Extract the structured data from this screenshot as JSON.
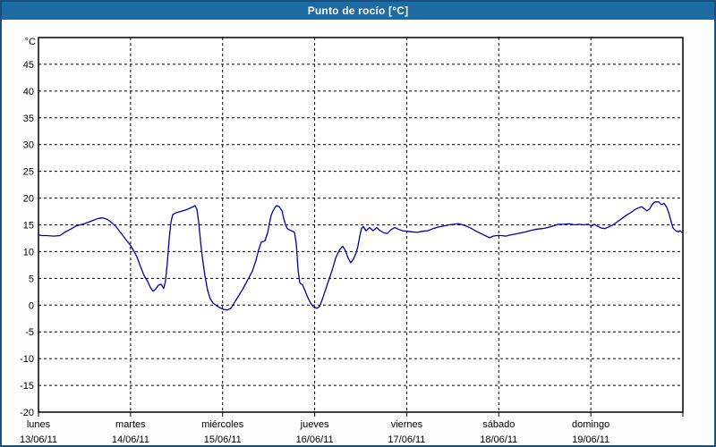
{
  "window_title": "Punto de rocío [°C]",
  "colors": {
    "title_bar": "#1d6ba3",
    "title_text": "#ffffff",
    "window_border": "#17507d",
    "page_bg": "#fdfdfc",
    "plot_bg": "#ffffff",
    "grid": "#000000",
    "line": "#0000aa"
  },
  "chart_data": {
    "type": "line",
    "title": "Punto de rocío [°C]",
    "ylabel": "°C",
    "xlabel": "",
    "ylim": [
      -20,
      50
    ],
    "y_ticks": [
      45,
      40,
      35,
      30,
      25,
      20,
      15,
      10,
      5,
      0,
      -5,
      -10,
      -15,
      -20
    ],
    "grid": "dashed",
    "legend_position": "none",
    "x_days": [
      {
        "name": "lunes",
        "date": "13/06/11"
      },
      {
        "name": "martes",
        "date": "14/06/11"
      },
      {
        "name": "miércoles",
        "date": "15/06/11"
      },
      {
        "name": "jueves",
        "date": "16/06/11"
      },
      {
        "name": "viernes",
        "date": "17/06/11"
      },
      {
        "name": "sábado",
        "date": "18/06/11"
      },
      {
        "name": "domingo",
        "date": "19/06/11"
      }
    ],
    "x_unit": "days_since_2011-06-13",
    "x_range": [
      0,
      7
    ],
    "series": [
      {
        "name": "Punto de rocío",
        "color": "#0000aa",
        "points": [
          [
            0.0,
            13.1
          ],
          [
            0.044,
            13.0
          ],
          [
            0.087,
            13.0
          ],
          [
            0.165,
            12.9
          ],
          [
            0.233,
            13.0
          ],
          [
            0.282,
            13.6
          ],
          [
            0.35,
            14.2
          ],
          [
            0.408,
            14.8
          ],
          [
            0.476,
            15.1
          ],
          [
            0.544,
            15.5
          ],
          [
            0.603,
            15.9
          ],
          [
            0.651,
            16.2
          ],
          [
            0.7,
            16.3
          ],
          [
            0.749,
            16.0
          ],
          [
            0.797,
            15.4
          ],
          [
            0.846,
            14.6
          ],
          [
            0.894,
            13.5
          ],
          [
            0.943,
            12.4
          ],
          [
            0.994,
            11.3
          ],
          [
            1.03,
            10.3
          ],
          [
            1.069,
            9.0
          ],
          [
            1.108,
            7.2
          ],
          [
            1.147,
            5.5
          ],
          [
            1.186,
            4.4
          ],
          [
            1.215,
            3.3
          ],
          [
            1.244,
            2.6
          ],
          [
            1.273,
            3.0
          ],
          [
            1.302,
            3.7
          ],
          [
            1.331,
            3.9
          ],
          [
            1.36,
            3.1
          ],
          [
            1.38,
            4.5
          ],
          [
            1.4,
            8.0
          ],
          [
            1.42,
            12.5
          ],
          [
            1.439,
            15.5
          ],
          [
            1.458,
            16.9
          ],
          [
            1.487,
            17.2
          ],
          [
            1.526,
            17.4
          ],
          [
            1.565,
            17.6
          ],
          [
            1.604,
            17.8
          ],
          [
            1.643,
            18.1
          ],
          [
            1.682,
            18.4
          ],
          [
            1.701,
            18.6
          ],
          [
            1.721,
            17.9
          ],
          [
            1.74,
            15.5
          ],
          [
            1.76,
            12.0
          ],
          [
            1.779,
            9.0
          ],
          [
            1.808,
            5.5
          ],
          [
            1.837,
            2.8
          ],
          [
            1.866,
            1.2
          ],
          [
            1.895,
            0.4
          ],
          [
            1.934,
            -0.1
          ],
          [
            1.973,
            -0.5
          ],
          [
            2.012,
            -0.8
          ],
          [
            2.051,
            -0.9
          ],
          [
            2.09,
            -0.6
          ],
          [
            2.129,
            0.5
          ],
          [
            2.177,
            1.8
          ],
          [
            2.226,
            3.2
          ],
          [
            2.275,
            4.8
          ],
          [
            2.323,
            6.3
          ],
          [
            2.362,
            8.3
          ],
          [
            2.391,
            10.3
          ],
          [
            2.421,
            11.8
          ],
          [
            2.46,
            12.0
          ],
          [
            2.489,
            13.5
          ],
          [
            2.508,
            15.2
          ],
          [
            2.528,
            16.8
          ],
          [
            2.547,
            17.6
          ],
          [
            2.567,
            18.2
          ],
          [
            2.586,
            18.6
          ],
          [
            2.615,
            18.4
          ],
          [
            2.645,
            17.6
          ],
          [
            2.664,
            16.2
          ],
          [
            2.684,
            15.0
          ],
          [
            2.703,
            14.3
          ],
          [
            2.732,
            14.0
          ],
          [
            2.761,
            13.8
          ],
          [
            2.781,
            13.6
          ],
          [
            2.8,
            11.5
          ],
          [
            2.82,
            6.5
          ],
          [
            2.839,
            4.1
          ],
          [
            2.868,
            3.8
          ],
          [
            2.897,
            2.6
          ],
          [
            2.926,
            1.4
          ],
          [
            2.956,
            0.4
          ],
          [
            2.985,
            -0.3
          ],
          [
            3.024,
            -0.6
          ],
          [
            3.053,
            -0.3
          ],
          [
            3.082,
            1.0
          ],
          [
            3.111,
            2.5
          ],
          [
            3.14,
            4.0
          ],
          [
            3.169,
            5.5
          ],
          [
            3.199,
            7.0
          ],
          [
            3.228,
            8.8
          ],
          [
            3.266,
            10.2
          ],
          [
            3.305,
            11.0
          ],
          [
            3.334,
            10.2
          ],
          [
            3.363,
            8.8
          ],
          [
            3.392,
            7.9
          ],
          [
            3.421,
            8.6
          ],
          [
            3.451,
            9.8
          ],
          [
            3.47,
            11.0
          ],
          [
            3.489,
            12.8
          ],
          [
            3.509,
            14.3
          ],
          [
            3.528,
            14.7
          ],
          [
            3.557,
            13.9
          ],
          [
            3.596,
            14.5
          ],
          [
            3.635,
            13.9
          ],
          [
            3.674,
            14.5
          ],
          [
            3.713,
            13.9
          ],
          [
            3.752,
            13.5
          ],
          [
            3.791,
            13.4
          ],
          [
            3.83,
            14.1
          ],
          [
            3.869,
            14.5
          ],
          [
            3.908,
            14.2
          ],
          [
            3.956,
            13.9
          ],
          [
            4.005,
            13.8
          ],
          [
            4.054,
            13.7
          ],
          [
            4.112,
            13.6
          ],
          [
            4.171,
            13.8
          ],
          [
            4.229,
            13.9
          ],
          [
            4.287,
            14.3
          ],
          [
            4.346,
            14.6
          ],
          [
            4.404,
            14.8
          ],
          [
            4.462,
            15.0
          ],
          [
            4.511,
            15.1
          ],
          [
            4.56,
            15.2
          ],
          [
            4.608,
            15.0
          ],
          [
            4.657,
            14.7
          ],
          [
            4.706,
            14.3
          ],
          [
            4.754,
            13.8
          ],
          [
            4.803,
            13.4
          ],
          [
            4.851,
            13.0
          ],
          [
            4.9,
            12.6
          ],
          [
            4.939,
            12.9
          ],
          [
            4.978,
            13.0
          ],
          [
            5.027,
            13.0
          ],
          [
            5.075,
            12.9
          ],
          [
            5.124,
            13.1
          ],
          [
            5.182,
            13.3
          ],
          [
            5.24,
            13.5
          ],
          [
            5.299,
            13.7
          ],
          [
            5.357,
            14.0
          ],
          [
            5.416,
            14.2
          ],
          [
            5.474,
            14.3
          ],
          [
            5.532,
            14.5
          ],
          [
            5.591,
            14.8
          ],
          [
            5.649,
            15.1
          ],
          [
            5.707,
            15.1
          ],
          [
            5.766,
            15.2
          ],
          [
            5.824,
            15.0
          ],
          [
            5.873,
            15.1
          ],
          [
            5.921,
            15.0
          ],
          [
            5.97,
            15.1
          ],
          [
            6.008,
            14.8
          ],
          [
            6.038,
            15.1
          ],
          [
            6.076,
            14.7
          ],
          [
            6.115,
            14.4
          ],
          [
            6.154,
            14.3
          ],
          [
            6.193,
            14.6
          ],
          [
            6.241,
            15.0
          ],
          [
            6.29,
            15.6
          ],
          [
            6.339,
            16.2
          ],
          [
            6.387,
            16.8
          ],
          [
            6.436,
            17.3
          ],
          [
            6.484,
            17.9
          ],
          [
            6.523,
            18.2
          ],
          [
            6.552,
            18.4
          ],
          [
            6.581,
            18.0
          ],
          [
            6.611,
            17.6
          ],
          [
            6.64,
            18.0
          ],
          [
            6.669,
            18.9
          ],
          [
            6.698,
            19.3
          ],
          [
            6.737,
            19.3
          ],
          [
            6.766,
            18.8
          ],
          [
            6.796,
            19.0
          ],
          [
            6.825,
            18.3
          ],
          [
            6.854,
            16.8
          ],
          [
            6.873,
            15.6
          ],
          [
            6.893,
            14.4
          ],
          [
            6.922,
            13.9
          ],
          [
            6.951,
            13.7
          ],
          [
            6.971,
            13.9
          ],
          [
            6.99,
            13.6
          ]
        ]
      }
    ]
  }
}
